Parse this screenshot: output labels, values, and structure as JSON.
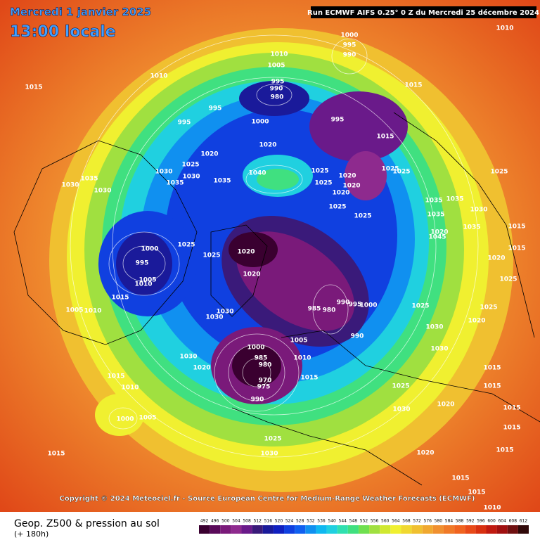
{
  "header": {
    "date": "Mercredi 1 janvier 2025",
    "time": "13:00 locale",
    "run": "Run ECMWF AIFS 0.25° 0 Z du Mercredi 25 décembre 2024"
  },
  "copyright": "Copyright © 2024 Meteociel.fr - Source European Centre for Medium-Range Weather Forecasts (ECMWF)",
  "footer": {
    "title": "Geop. Z500 & pression au sol",
    "lead": "(+ 180h)"
  },
  "legend": {
    "labels": [
      492,
      496,
      500,
      504,
      508,
      512,
      516,
      520,
      524,
      528,
      532,
      536,
      540,
      544,
      548,
      552,
      556,
      560,
      564,
      568,
      572,
      576,
      580,
      584,
      588,
      592,
      596,
      600,
      604,
      608,
      612
    ],
    "colors": [
      "#3a0030",
      "#5a0a5a",
      "#7a1a7a",
      "#8e2a8e",
      "#6a1a8a",
      "#3a1a7a",
      "#1a1a9a",
      "#1020c0",
      "#1040e0",
      "#1060f0",
      "#1090f0",
      "#10b8f0",
      "#20d0e0",
      "#30e0b0",
      "#40e080",
      "#70e050",
      "#a0e040",
      "#d0e830",
      "#f0f030",
      "#f0d830",
      "#f0c030",
      "#f0a830",
      "#f09030",
      "#f07a28",
      "#f06420",
      "#e84a18",
      "#d83010",
      "#c01a10",
      "#a01010",
      "#701010",
      "#300808"
    ]
  },
  "pressure_labels": [
    1010,
    1000,
    995,
    990,
    1010,
    1005,
    1010,
    1015,
    995,
    990,
    980,
    1015,
    995,
    995,
    1000,
    995,
    1015,
    1020,
    1020,
    1025,
    1030,
    1030,
    1035,
    1035,
    1040,
    1025,
    1020,
    1025,
    1020,
    1020,
    1025,
    1025,
    1025,
    1030,
    1035,
    1030,
    1025,
    1025,
    1035,
    1035,
    1030,
    1035,
    1035,
    1020,
    1045,
    1015,
    1025,
    1025,
    1020,
    1020,
    1000,
    995,
    1005,
    1010,
    1015,
    1005,
    1010,
    1030,
    1030,
    985,
    980,
    990,
    995,
    1000,
    1025,
    1030,
    1005,
    990,
    1000,
    985,
    980,
    970,
    975,
    1010,
    1015,
    1030,
    1020,
    1030,
    1015,
    1010,
    1025,
    990,
    1000,
    1005,
    1030,
    1020,
    1015,
    1015,
    1025,
    1030,
    1020,
    1015,
    1020,
    1015,
    1025,
    1020,
    1025,
    1015,
    1015,
    1015,
    1015,
    1015,
    1010
  ]
}
